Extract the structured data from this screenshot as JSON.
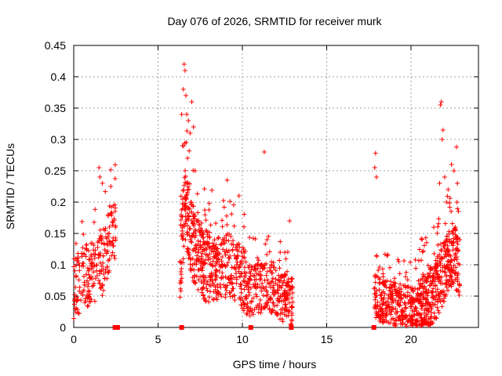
{
  "chart_data": {
    "type": "scatter",
    "title": "Day 076 of 2026, SRMTID for receiver murk",
    "xlabel": "GPS time / hours",
    "ylabel": "SRMTID / TECUs",
    "xlim": [
      0,
      24
    ],
    "ylim": [
      0,
      0.45
    ],
    "x_ticks": [
      0,
      5,
      10,
      15,
      20
    ],
    "x_tick_labels": [
      "0",
      "5",
      "10",
      "15",
      "20"
    ],
    "y_ticks": [
      0,
      0.05,
      0.1,
      0.15,
      0.2,
      0.25,
      0.3,
      0.35,
      0.4,
      0.45
    ],
    "y_tick_labels": [
      "0",
      "0.05",
      "0.1",
      "0.15",
      "0.2",
      "0.25",
      "0.3",
      "0.35",
      "0.4",
      "0.45"
    ],
    "grid": true,
    "marker": "plus",
    "color": "#ff0000",
    "zero_markers_x": [
      2.45,
      2.6,
      6.4,
      10.5,
      12.9,
      17.8
    ],
    "series": [
      {
        "name": "SRMTID",
        "clusters": [
          {
            "start": 0.0,
            "end": 2.5,
            "count": 230,
            "trend": [
              [
                0,
                0.06
              ],
              [
                0.6,
                0.08
              ],
              [
                1.2,
                0.09
              ],
              [
                1.7,
                0.1
              ],
              [
                2.1,
                0.14
              ],
              [
                2.5,
                0.16
              ]
            ],
            "spread": 0.05
          },
          {
            "start": 6.3,
            "end": 8.2,
            "count": 300,
            "trend": [
              [
                6.3,
                0.1
              ],
              [
                6.6,
                0.2
              ],
              [
                7.0,
                0.14
              ],
              [
                7.5,
                0.11
              ],
              [
                8.2,
                0.09
              ]
            ],
            "spread": 0.06
          },
          {
            "start": 8.2,
            "end": 10.5,
            "count": 260,
            "trend": [
              [
                8.2,
                0.09
              ],
              [
                9.2,
                0.1
              ],
              [
                10.0,
                0.08
              ],
              [
                10.5,
                0.06
              ]
            ],
            "spread": 0.05
          },
          {
            "start": 10.5,
            "end": 13.0,
            "count": 260,
            "trend": [
              [
                10.5,
                0.06
              ],
              [
                11.5,
                0.065
              ],
              [
                12.3,
                0.05
              ],
              [
                13.0,
                0.04
              ]
            ],
            "spread": 0.04
          },
          {
            "start": 17.8,
            "end": 20.5,
            "count": 330,
            "trend": [
              [
                17.8,
                0.05
              ],
              [
                18.5,
                0.04
              ],
              [
                19.5,
                0.035
              ],
              [
                20.5,
                0.03
              ]
            ],
            "spread": 0.035
          },
          {
            "start": 20.5,
            "end": 22.9,
            "count": 400,
            "trend": [
              [
                20.5,
                0.03
              ],
              [
                21.3,
                0.05
              ],
              [
                22.0,
                0.09
              ],
              [
                22.5,
                0.12
              ],
              [
                22.9,
                0.09
              ]
            ],
            "spread": 0.05
          }
        ],
        "peaks": [
          {
            "x": 1.5,
            "y": 0.255
          },
          {
            "x": 1.55,
            "y": 0.24
          },
          {
            "x": 1.7,
            "y": 0.23
          },
          {
            "x": 2.2,
            "y": 0.225
          },
          {
            "x": 6.55,
            "y": 0.42
          },
          {
            "x": 6.6,
            "y": 0.41
          },
          {
            "x": 6.5,
            "y": 0.38
          },
          {
            "x": 6.65,
            "y": 0.37
          },
          {
            "x": 7.0,
            "y": 0.36
          },
          {
            "x": 6.4,
            "y": 0.34
          },
          {
            "x": 6.7,
            "y": 0.34
          },
          {
            "x": 6.8,
            "y": 0.33
          },
          {
            "x": 7.1,
            "y": 0.32
          },
          {
            "x": 6.45,
            "y": 0.29
          },
          {
            "x": 6.9,
            "y": 0.31
          },
          {
            "x": 6.75,
            "y": 0.27
          },
          {
            "x": 7.2,
            "y": 0.25
          },
          {
            "x": 9.1,
            "y": 0.235
          },
          {
            "x": 9.8,
            "y": 0.21
          },
          {
            "x": 11.3,
            "y": 0.28
          },
          {
            "x": 12.8,
            "y": 0.17
          },
          {
            "x": 17.9,
            "y": 0.278
          },
          {
            "x": 17.85,
            "y": 0.255
          },
          {
            "x": 17.95,
            "y": 0.24
          },
          {
            "x": 21.8,
            "y": 0.36
          },
          {
            "x": 21.75,
            "y": 0.355
          },
          {
            "x": 21.9,
            "y": 0.315
          },
          {
            "x": 21.85,
            "y": 0.3
          },
          {
            "x": 22.7,
            "y": 0.288
          },
          {
            "x": 22.4,
            "y": 0.26
          },
          {
            "x": 22.55,
            "y": 0.25
          },
          {
            "x": 22.0,
            "y": 0.24
          },
          {
            "x": 21.7,
            "y": 0.23
          },
          {
            "x": 22.2,
            "y": 0.22
          },
          {
            "x": 22.75,
            "y": 0.23
          },
          {
            "x": 22.1,
            "y": 0.2
          }
        ]
      }
    ]
  }
}
